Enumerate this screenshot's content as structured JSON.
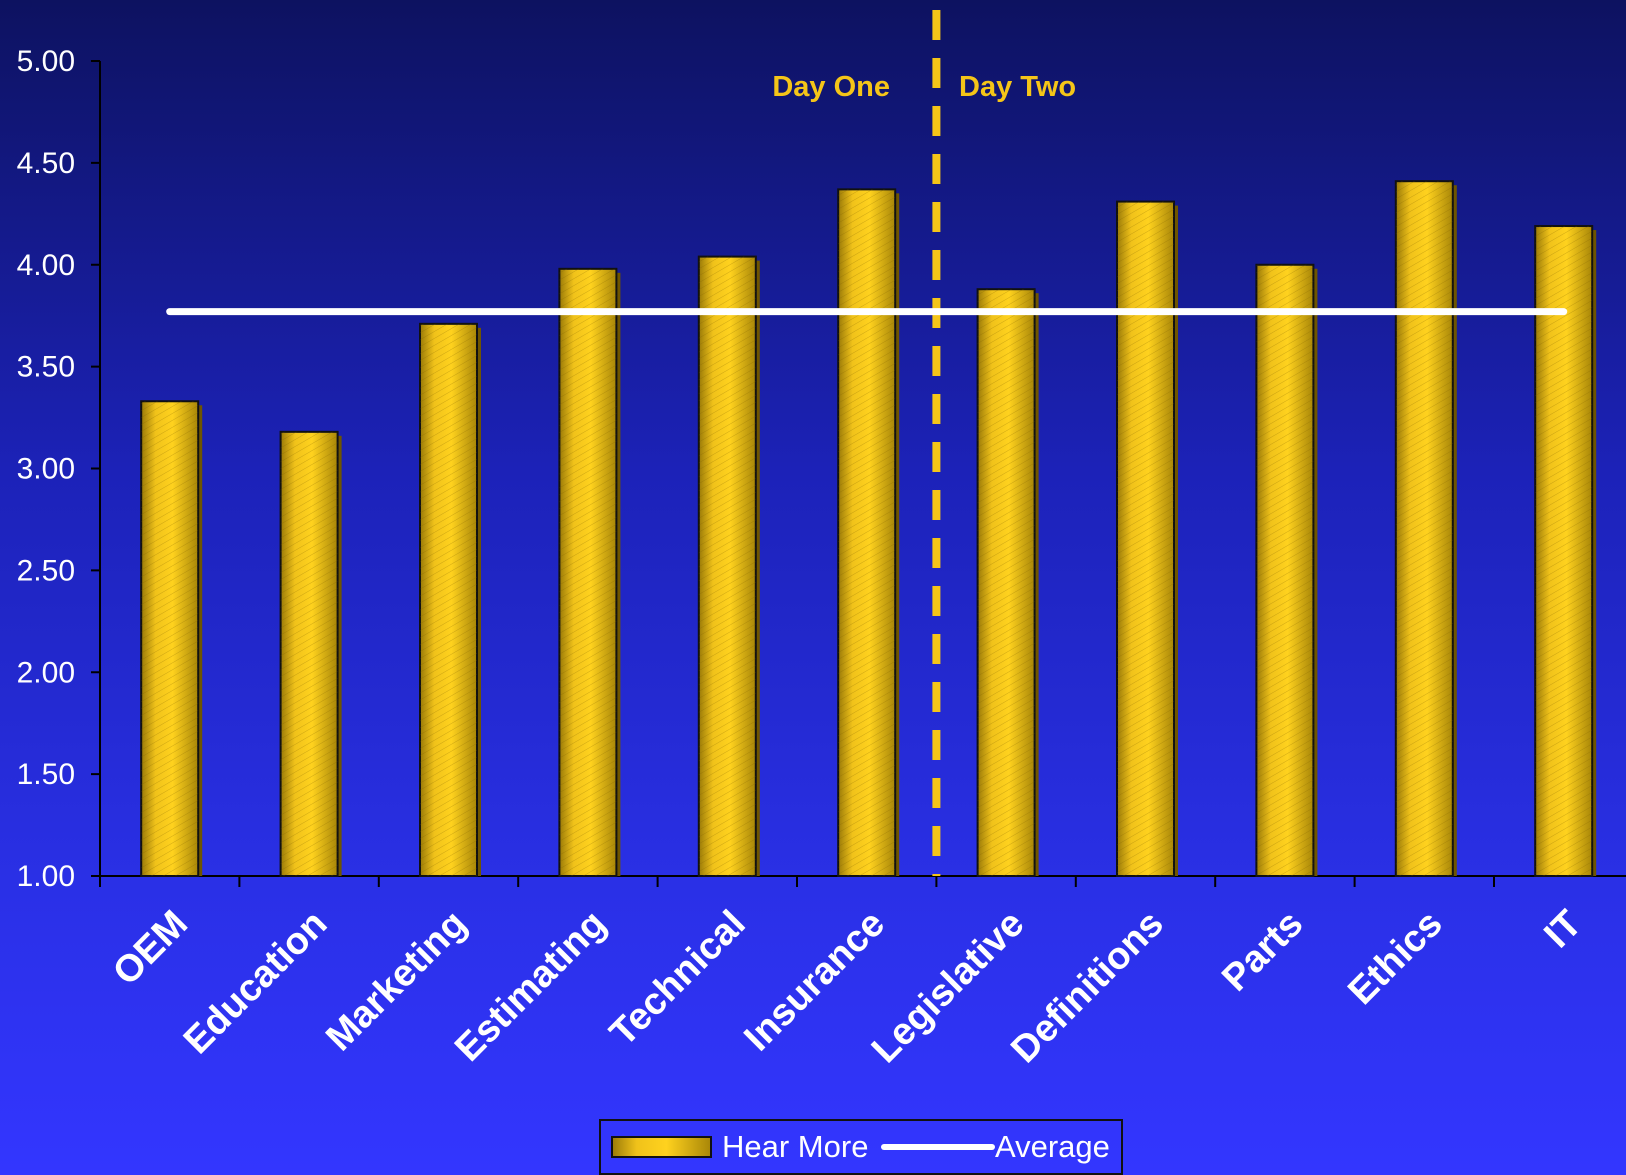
{
  "chart_data": {
    "type": "bar",
    "categories": [
      "OEM",
      "Education",
      "Marketing",
      "Estimating",
      "Technical",
      "Insurance",
      "Legislative",
      "Definitions",
      "Parts",
      "Ethics",
      "IT"
    ],
    "series": [
      {
        "name": "Hear More",
        "values": [
          3.33,
          3.18,
          3.71,
          3.98,
          4.04,
          4.37,
          3.88,
          4.31,
          4.0,
          4.41,
          4.19
        ]
      }
    ],
    "average": {
      "name": "Average",
      "value": 3.77
    },
    "ylim": [
      1.0,
      5.0
    ],
    "yticks": [
      "1.00",
      "1.50",
      "2.00",
      "2.50",
      "3.00",
      "3.50",
      "4.00",
      "4.50",
      "5.00"
    ],
    "annotations": {
      "day_one": "Day One",
      "day_two": "Day Two"
    },
    "divider_after_category": "Insurance",
    "legend_placement": "bottom-center",
    "grid": false,
    "colors": {
      "bar": "#f5c518",
      "bar_shadow": "#6e5500",
      "average_line": "#ffffff",
      "divider": "#f5c518"
    }
  }
}
